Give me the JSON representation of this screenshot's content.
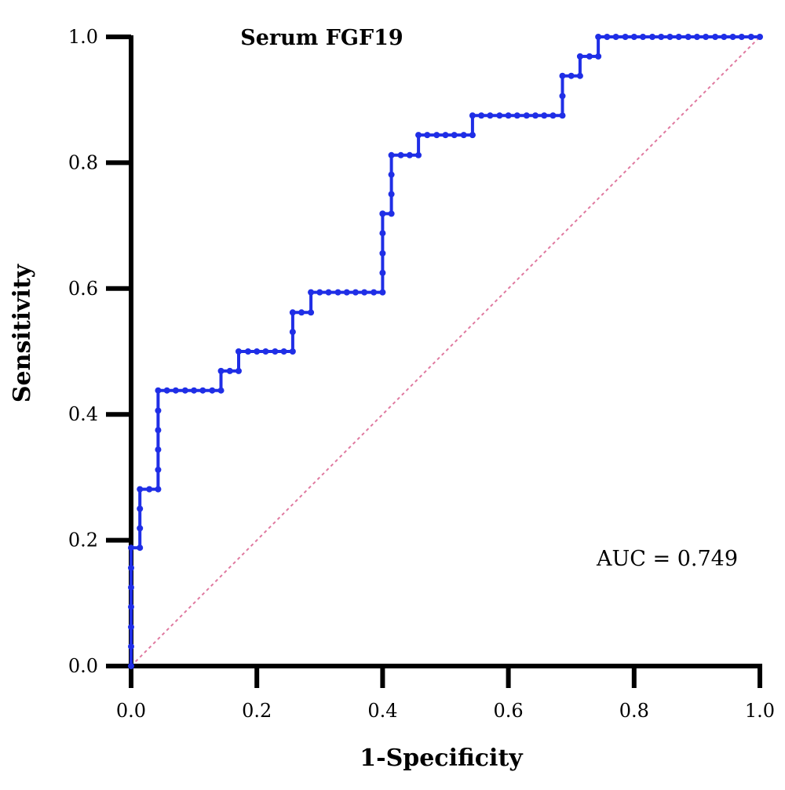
{
  "chart_data": {
    "type": "line",
    "title": "Serum FGF19",
    "xlabel": "1-Specificity",
    "ylabel": "Sensitivity",
    "xlim": [
      0,
      1
    ],
    "ylim": [
      0,
      1
    ],
    "x_ticks": [
      "0.0",
      "0.2",
      "0.4",
      "0.6",
      "0.8",
      "1.0"
    ],
    "y_ticks": [
      "0.0",
      "0.2",
      "0.4",
      "0.6",
      "0.8",
      "1.0"
    ],
    "annotation": "AUC = 0.749",
    "grid": false,
    "colors": {
      "roc": "#1f2ee6",
      "reference": "#e07aa0",
      "axis": "#000000"
    },
    "series": [
      {
        "x": [
          0.0,
          0.0,
          0.0,
          0.0,
          0.0,
          0.0,
          0.0,
          0.014,
          0.014,
          0.014,
          0.014,
          0.029,
          0.043,
          0.043,
          0.043,
          0.043,
          0.043,
          0.043,
          0.057,
          0.071,
          0.086,
          0.1,
          0.114,
          0.129,
          0.143,
          0.143,
          0.157,
          0.171,
          0.171,
          0.186,
          0.2,
          0.214,
          0.229,
          0.243,
          0.257,
          0.257,
          0.257,
          0.271,
          0.286,
          0.286,
          0.3,
          0.314,
          0.329,
          0.343,
          0.357,
          0.371,
          0.386,
          0.4,
          0.4,
          0.4,
          0.4,
          0.4,
          0.4,
          0.414,
          0.414,
          0.414,
          0.414,
          0.429,
          0.443,
          0.457,
          0.457,
          0.471,
          0.486,
          0.5,
          0.514,
          0.529,
          0.543,
          0.543,
          0.557,
          0.571,
          0.586,
          0.6,
          0.614,
          0.629,
          0.643,
          0.657,
          0.671,
          0.686,
          0.686,
          0.686,
          0.7,
          0.714,
          0.714,
          0.729,
          0.743,
          0.743,
          0.757,
          0.771,
          0.786,
          0.8,
          0.814,
          0.829,
          0.843,
          0.857,
          0.871,
          0.886,
          0.9,
          0.914,
          0.929,
          0.943,
          0.957,
          0.971,
          0.986,
          1.0
        ],
        "y": [
          0.0,
          0.031,
          0.062,
          0.094,
          0.125,
          0.156,
          0.188,
          0.188,
          0.219,
          0.25,
          0.281,
          0.281,
          0.281,
          0.312,
          0.344,
          0.375,
          0.406,
          0.438,
          0.438,
          0.438,
          0.438,
          0.438,
          0.438,
          0.438,
          0.438,
          0.469,
          0.469,
          0.469,
          0.5,
          0.5,
          0.5,
          0.5,
          0.5,
          0.5,
          0.5,
          0.531,
          0.562,
          0.562,
          0.562,
          0.594,
          0.594,
          0.594,
          0.594,
          0.594,
          0.594,
          0.594,
          0.594,
          0.594,
          0.625,
          0.656,
          0.688,
          0.719,
          0.719,
          0.719,
          0.75,
          0.781,
          0.812,
          0.812,
          0.812,
          0.812,
          0.844,
          0.844,
          0.844,
          0.844,
          0.844,
          0.844,
          0.844,
          0.875,
          0.875,
          0.875,
          0.875,
          0.875,
          0.875,
          0.875,
          0.875,
          0.875,
          0.875,
          0.875,
          0.906,
          0.938,
          0.938,
          0.938,
          0.969,
          0.969,
          0.969,
          1.0,
          1.0,
          1.0,
          1.0,
          1.0,
          1.0,
          1.0,
          1.0,
          1.0,
          1.0,
          1.0,
          1.0,
          1.0,
          1.0,
          1.0,
          1.0,
          1.0,
          1.0,
          1.0
        ]
      },
      {
        "x": [
          0,
          1
        ],
        "y": [
          0,
          1
        ]
      }
    ]
  }
}
